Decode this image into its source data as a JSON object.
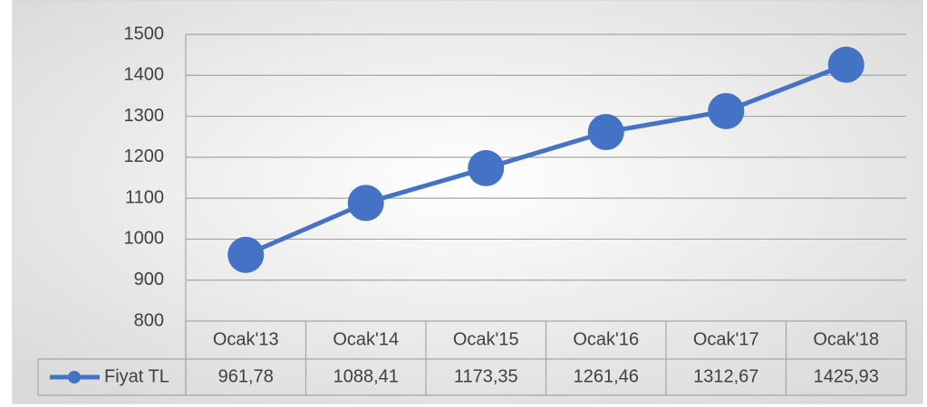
{
  "chart_data": {
    "type": "line",
    "categories": [
      "Ocak'13",
      "Ocak'14",
      "Ocak'15",
      "Ocak'16",
      "Ocak'17",
      "Ocak'18"
    ],
    "series": [
      {
        "name": "Fiyat TL",
        "color": "#4472c4",
        "values": [
          961.78,
          1088.41,
          1173.35,
          1261.46,
          1312.67,
          1425.93
        ],
        "value_labels": [
          "961,78",
          "1088,41",
          "1173,35",
          "1261,46",
          "1312,67",
          "1425,93"
        ]
      }
    ],
    "ylim": [
      800,
      1500
    ],
    "yticks": [
      800,
      900,
      1000,
      1100,
      1200,
      1300,
      1400,
      1500
    ],
    "grid": true
  }
}
